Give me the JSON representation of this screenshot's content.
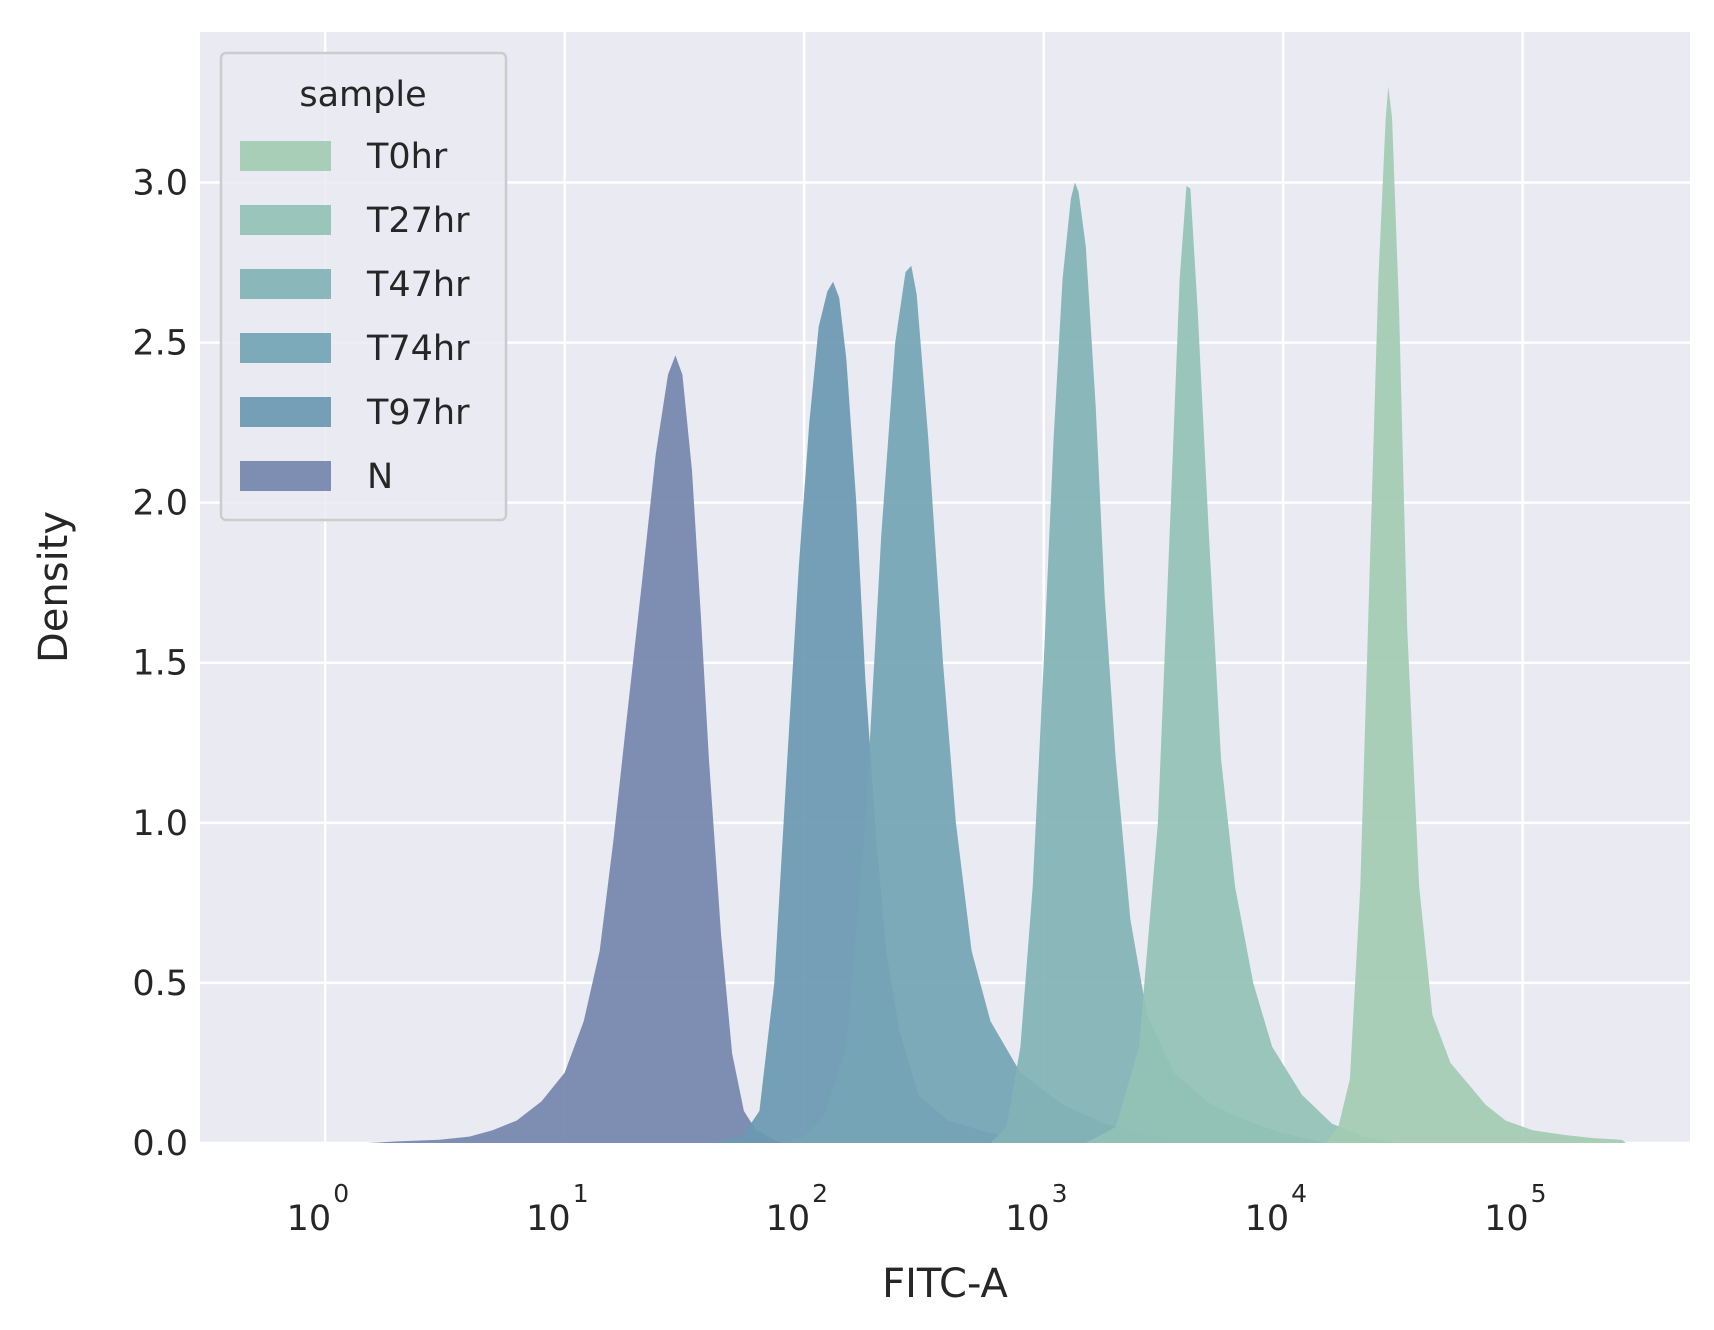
{
  "chart_data": {
    "type": "area",
    "subtype": "kde-density",
    "xscale": "log",
    "xlabel": "FITC-A",
    "ylabel": "Density",
    "xlim": [
      0.3,
      500000.0
    ],
    "ylim": [
      0,
      3.47
    ],
    "xticks": [
      {
        "base": "10",
        "exp": "0",
        "value": 1
      },
      {
        "base": "10",
        "exp": "1",
        "value": 10
      },
      {
        "base": "10",
        "exp": "2",
        "value": 100
      },
      {
        "base": "10",
        "exp": "3",
        "value": 1000
      },
      {
        "base": "10",
        "exp": "4",
        "value": 10000
      },
      {
        "base": "10",
        "exp": "5",
        "value": 100000
      }
    ],
    "yticks": [
      "0.0",
      "0.5",
      "1.0",
      "1.5",
      "2.0",
      "2.5",
      "3.0"
    ],
    "grid": true,
    "background": "#eaeaf2",
    "legend": {
      "title": "sample",
      "position": "upper-left",
      "entries": [
        "T0hr",
        "T27hr",
        "T47hr",
        "T74hr",
        "T97hr",
        "N"
      ]
    },
    "series": [
      {
        "name": "N",
        "color": "#7587ae",
        "points": [
          [
            1.5,
            0
          ],
          [
            2,
            0.005
          ],
          [
            3,
            0.01
          ],
          [
            4,
            0.02
          ],
          [
            5,
            0.04
          ],
          [
            6.3,
            0.07
          ],
          [
            8,
            0.13
          ],
          [
            10,
            0.22
          ],
          [
            12,
            0.38
          ],
          [
            14,
            0.6
          ],
          [
            16,
            0.95
          ],
          [
            18,
            1.3
          ],
          [
            21,
            1.75
          ],
          [
            24,
            2.15
          ],
          [
            27,
            2.4
          ],
          [
            29,
            2.46
          ],
          [
            31,
            2.4
          ],
          [
            34,
            2.1
          ],
          [
            37,
            1.65
          ],
          [
            40,
            1.2
          ],
          [
            45,
            0.65
          ],
          [
            50,
            0.28
          ],
          [
            56,
            0.1
          ],
          [
            63,
            0.04
          ],
          [
            80,
            0
          ]
        ]
      },
      {
        "name": "T97hr",
        "color": "#6a99b2",
        "points": [
          [
            40,
            0
          ],
          [
            55,
            0.02
          ],
          [
            65,
            0.1
          ],
          [
            75,
            0.5
          ],
          [
            85,
            1.2
          ],
          [
            95,
            1.8
          ],
          [
            105,
            2.25
          ],
          [
            115,
            2.55
          ],
          [
            125,
            2.66
          ],
          [
            132,
            2.69
          ],
          [
            140,
            2.64
          ],
          [
            150,
            2.45
          ],
          [
            165,
            2.0
          ],
          [
            180,
            1.45
          ],
          [
            200,
            0.95
          ],
          [
            220,
            0.6
          ],
          [
            250,
            0.35
          ],
          [
            300,
            0.15
          ],
          [
            400,
            0.07
          ],
          [
            600,
            0.03
          ],
          [
            1000,
            0
          ]
        ]
      },
      {
        "name": "T74hr",
        "color": "#74a5b5",
        "points": [
          [
            80,
            0
          ],
          [
            100,
            0.02
          ],
          [
            120,
            0.08
          ],
          [
            150,
            0.3
          ],
          [
            180,
            1.0
          ],
          [
            210,
            1.9
          ],
          [
            240,
            2.5
          ],
          [
            265,
            2.72
          ],
          [
            280,
            2.74
          ],
          [
            295,
            2.65
          ],
          [
            330,
            2.2
          ],
          [
            380,
            1.5
          ],
          [
            430,
            1.0
          ],
          [
            500,
            0.6
          ],
          [
            600,
            0.38
          ],
          [
            800,
            0.22
          ],
          [
            1200,
            0.12
          ],
          [
            1800,
            0.06
          ],
          [
            3000,
            0.02
          ],
          [
            5000,
            0
          ]
        ]
      },
      {
        "name": "T47hr",
        "color": "#82b3b6",
        "points": [
          [
            600,
            0
          ],
          [
            700,
            0.05
          ],
          [
            800,
            0.3
          ],
          [
            900,
            0.8
          ],
          [
            1000,
            1.5
          ],
          [
            1100,
            2.2
          ],
          [
            1200,
            2.7
          ],
          [
            1300,
            2.95
          ],
          [
            1350,
            3.0
          ],
          [
            1400,
            2.97
          ],
          [
            1500,
            2.8
          ],
          [
            1650,
            2.3
          ],
          [
            1800,
            1.7
          ],
          [
            2000,
            1.2
          ],
          [
            2300,
            0.7
          ],
          [
            2700,
            0.4
          ],
          [
            3500,
            0.22
          ],
          [
            5000,
            0.12
          ],
          [
            7000,
            0.07
          ],
          [
            10000,
            0.03
          ],
          [
            15000,
            0
          ]
        ]
      },
      {
        "name": "T27hr",
        "color": "#92c2b6",
        "points": [
          [
            1500,
            0
          ],
          [
            2000,
            0.05
          ],
          [
            2500,
            0.3
          ],
          [
            3000,
            1.0
          ],
          [
            3400,
            2.0
          ],
          [
            3700,
            2.7
          ],
          [
            3950,
            2.99
          ],
          [
            4100,
            2.98
          ],
          [
            4400,
            2.6
          ],
          [
            4900,
            1.9
          ],
          [
            5500,
            1.2
          ],
          [
            6300,
            0.8
          ],
          [
            7500,
            0.5
          ],
          [
            9000,
            0.3
          ],
          [
            12000,
            0.15
          ],
          [
            16000,
            0.06
          ],
          [
            22000,
            0.02
          ],
          [
            30000,
            0
          ]
        ]
      },
      {
        "name": "T0hr",
        "color": "#a3cbb4",
        "points": [
          [
            15000,
            0
          ],
          [
            17000,
            0.05
          ],
          [
            19000,
            0.2
          ],
          [
            21000,
            0.8
          ],
          [
            23000,
            1.8
          ],
          [
            25000,
            2.7
          ],
          [
            26800,
            3.2
          ],
          [
            27500,
            3.3
          ],
          [
            28500,
            3.2
          ],
          [
            30500,
            2.6
          ],
          [
            33000,
            1.6
          ],
          [
            37000,
            0.8
          ],
          [
            42000,
            0.4
          ],
          [
            50000,
            0.25
          ],
          [
            60000,
            0.18
          ],
          [
            70000,
            0.12
          ],
          [
            85000,
            0.07
          ],
          [
            110000,
            0.04
          ],
          [
            150000,
            0.025
          ],
          [
            200000,
            0.015
          ],
          [
            260000,
            0.01
          ],
          [
            270000,
            0
          ]
        ]
      }
    ]
  }
}
